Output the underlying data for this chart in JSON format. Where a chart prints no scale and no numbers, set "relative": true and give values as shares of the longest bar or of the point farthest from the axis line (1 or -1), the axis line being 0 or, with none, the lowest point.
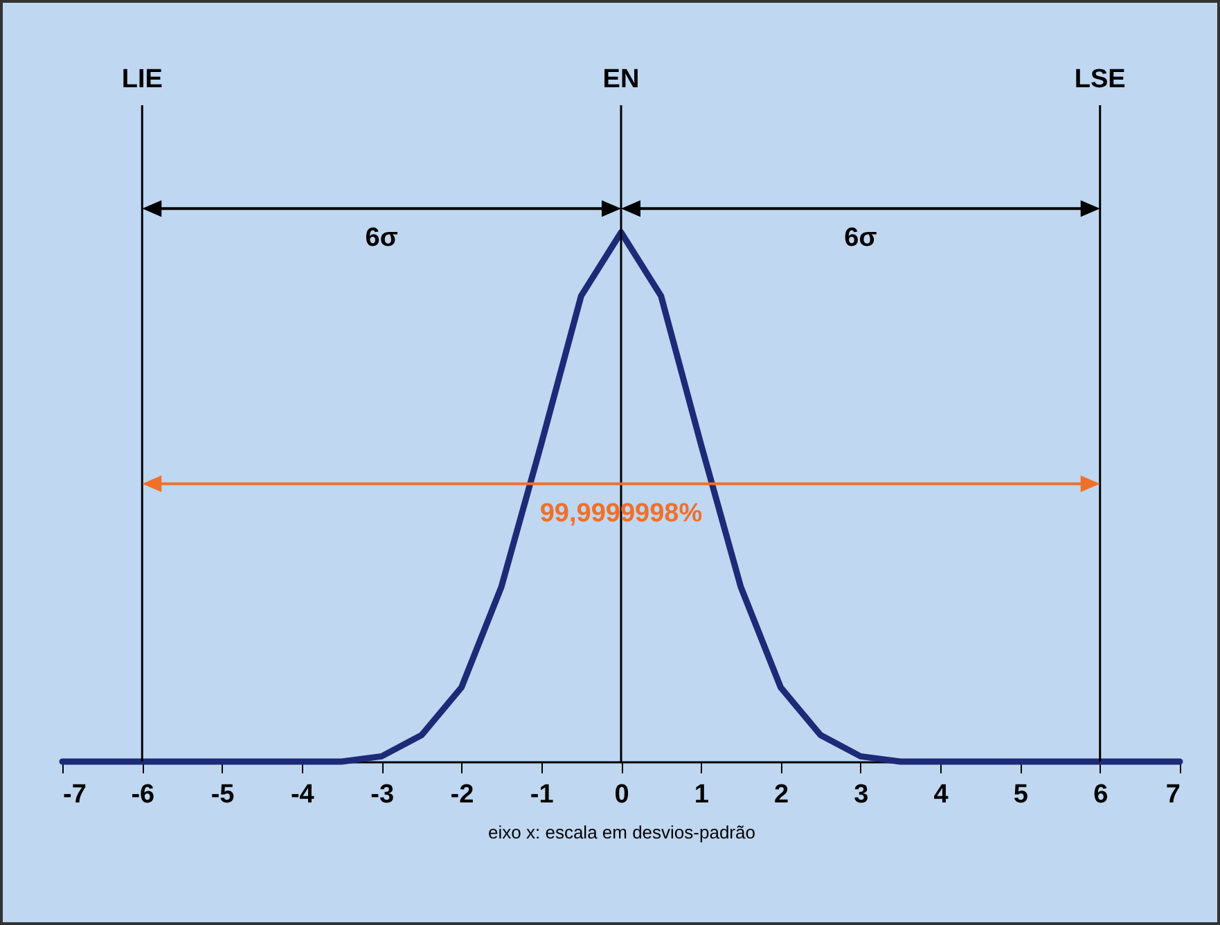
{
  "chart_data": {
    "type": "line",
    "relative": true,
    "xlabel": "eixo x: escala em desvios-padrão",
    "x": [
      -7,
      -6,
      -5,
      -4,
      -3.5,
      -3,
      -2.5,
      -2,
      -1.5,
      -1,
      -0.5,
      0,
      0.5,
      1,
      1.5,
      2,
      2.5,
      3,
      3.5,
      4,
      5,
      6,
      7
    ],
    "series": [
      {
        "color": "#1c2a78",
        "values": [
          0,
          0,
          0,
          0,
          0,
          0.01,
          0.05,
          0.14,
          0.33,
          0.6,
          0.88,
          1,
          0.88,
          0.6,
          0.33,
          0.14,
          0.05,
          0.01,
          0,
          0,
          0,
          0,
          0
        ]
      }
    ],
    "xlim": [
      -7,
      7
    ],
    "xticks": [
      -7,
      -6,
      -5,
      -4,
      -3,
      -2,
      -1,
      0,
      1,
      2,
      3,
      4,
      5,
      6,
      7
    ],
    "ref_lines": [
      {
        "axis": "x",
        "value": -6,
        "label": "LIE"
      },
      {
        "axis": "x",
        "value": 0,
        "label": "EN"
      },
      {
        "axis": "x",
        "value": 6,
        "label": "LSE"
      }
    ],
    "annotations": [
      "6σ",
      "6σ",
      "99,9999998%"
    ],
    "grid": false
  }
}
